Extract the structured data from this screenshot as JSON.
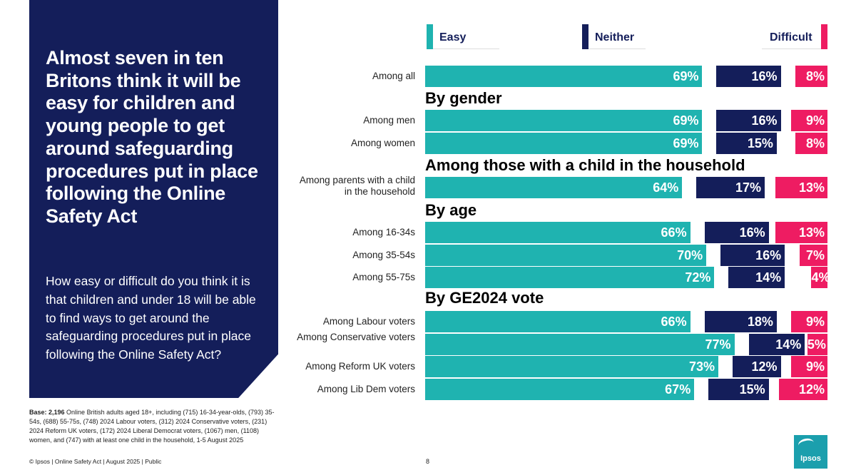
{
  "headline": "Almost seven in ten Britons think it will be easy for children and young people to get around safeguarding procedures put in place following the Online Safety Act",
  "question": "How easy or difficult do you think it is that children and under 18 will be able to find ways to get around the safeguarding procedures put in place following the Online Safety Act?",
  "base": {
    "label": "Base: 2,196",
    "text": " Online British adults aged 18+, including (715) 16-34-year-olds, (793) 35-54s, (688) 55-75s, (748) 2024 Labour voters, (312) 2024 Conservative voters, (231) 2024 Reform UK voters, (172) 2024 Liberal Democrat voters, (1067) men, (1108) women, and (747) with at least one child in the household, 1-5 August 2025"
  },
  "footer": "© Ipsos | Online Safety Act | August 2025 | Public",
  "page_number": "8",
  "logo_text": "Ipsos",
  "colors": {
    "easy": "#1fb3b0",
    "neither": "#141e5a",
    "difficult": "#ee1c62",
    "panel": "#141e5a"
  },
  "chart_data": {
    "type": "bar",
    "orientation": "horizontal",
    "stacked": true,
    "legend": [
      "Easy",
      "Neither",
      "Difficult"
    ],
    "legend_placement": "top",
    "sections": [
      {
        "title": "",
        "rows": [
          {
            "label": "Among all",
            "easy": 69,
            "neither": 16,
            "difficult": 8,
            "easy_label": "69%",
            "neither_label": "16%",
            "difficult_label": "8%"
          }
        ]
      },
      {
        "title": "By gender",
        "rows": [
          {
            "label": "Among men",
            "easy": 69,
            "neither": 16,
            "difficult": 9,
            "easy_label": "69%",
            "neither_label": "16%",
            "difficult_label": "9%"
          },
          {
            "label": "Among women",
            "easy": 69,
            "neither": 15,
            "difficult": 8,
            "easy_label": "69%",
            "neither_label": "15%",
            "difficult_label": "8%"
          }
        ]
      },
      {
        "title": "Among those with a child in the household",
        "rows": [
          {
            "label": "Among parents with a child in the household",
            "easy": 64,
            "neither": 17,
            "difficult": 13,
            "easy_label": "64%",
            "neither_label": "17%",
            "difficult_label": "13%"
          }
        ]
      },
      {
        "title": "By age",
        "rows": [
          {
            "label": "Among 16-34s",
            "easy": 66,
            "neither": 16,
            "difficult": 13,
            "easy_label": "66%",
            "neither_label": "16%",
            "difficult_label": "13%"
          },
          {
            "label": "Among 35-54s",
            "easy": 70,
            "neither": 16,
            "difficult": 7,
            "easy_label": "70%",
            "neither_label": "16%",
            "difficult_label": "7%"
          },
          {
            "label": "Among 55-75s",
            "easy": 72,
            "neither": 14,
            "difficult": 4,
            "easy_label": "72%",
            "neither_label": "14%",
            "difficult_label": "4%"
          }
        ]
      },
      {
        "title": "By GE2024 vote",
        "rows": [
          {
            "label": "Among Labour voters",
            "easy": 66,
            "neither": 18,
            "difficult": 9,
            "easy_label": "66%",
            "neither_label": "18%",
            "difficult_label": "9%"
          },
          {
            "label": "Among Conservative voters",
            "easy": 77,
            "neither": 14,
            "difficult": 5,
            "easy_label": "77%",
            "neither_label": "14%",
            "difficult_label": "5%"
          },
          {
            "label": "Among Reform UK voters",
            "easy": 73,
            "neither": 12,
            "difficult": 9,
            "easy_label": "73%",
            "neither_label": "12%",
            "difficult_label": "9%"
          },
          {
            "label": "Among Lib Dem voters",
            "easy": 67,
            "neither": 15,
            "difficult": 12,
            "easy_label": "67%",
            "neither_label": "15%",
            "difficult_label": "12%"
          }
        ]
      }
    ]
  }
}
